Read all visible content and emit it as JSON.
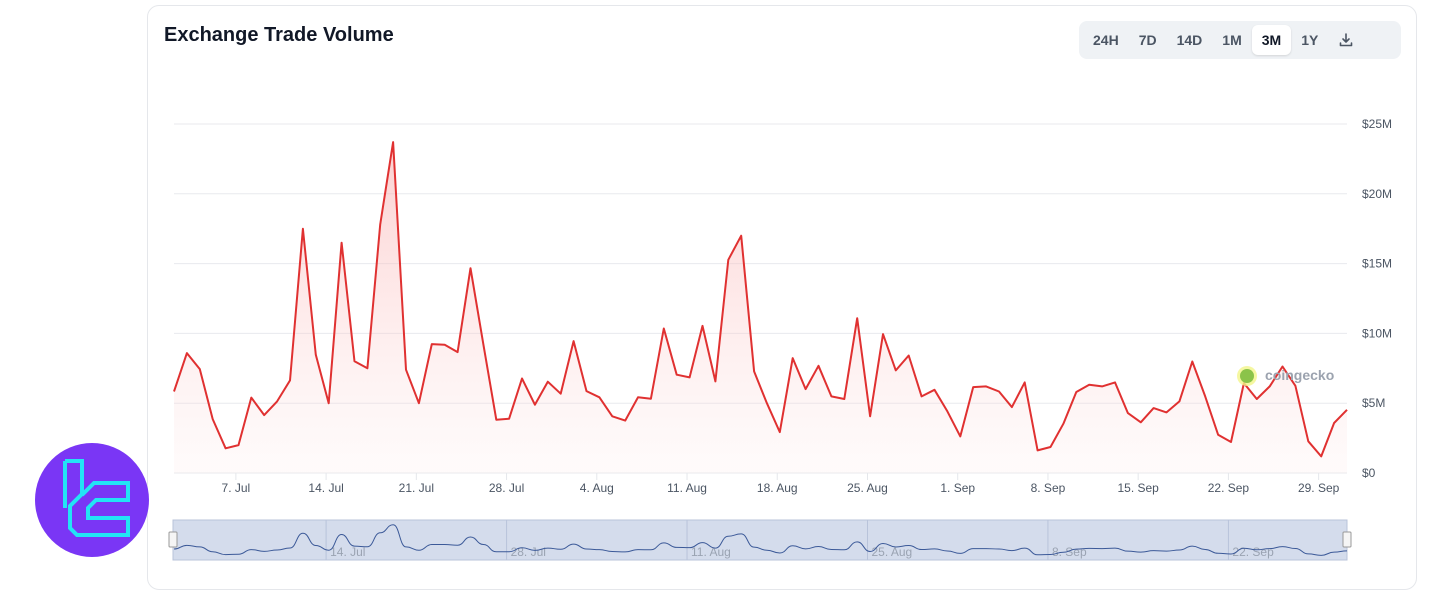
{
  "header": {
    "title": "Exchange Trade Volume"
  },
  "range_selector": {
    "options": [
      "24H",
      "7D",
      "14D",
      "1M",
      "3M",
      "1Y"
    ],
    "selected": "3M",
    "download_icon": "download-icon"
  },
  "watermark": "coingecko",
  "colors": {
    "line": "#e03131",
    "area": "#fde2e2",
    "navigator_fill": "#d4dcec",
    "navigator_line": "#3b5998",
    "logo_bg": "#7a36f5",
    "logo_glyph": "#22e4f5"
  },
  "chart_data": {
    "type": "area",
    "title": "Exchange Trade Volume",
    "xlabel": "",
    "ylabel": "",
    "ylim": [
      0,
      25
    ],
    "y_unit": "$M",
    "y_ticks": [
      "$0",
      "$5M",
      "$10M",
      "$15M",
      "$20M",
      "$25M"
    ],
    "x_ticks": [
      "7. Jul",
      "14. Jul",
      "21. Jul",
      "28. Jul",
      "4. Aug",
      "11. Aug",
      "18. Aug",
      "25. Aug",
      "1. Sep",
      "8. Sep",
      "15. Sep",
      "22. Sep",
      "29. Sep"
    ],
    "navigator_ticks": [
      "14. Jul",
      "28. Jul",
      "11. Aug",
      "25. Aug",
      "8. Sep",
      "22. Sep"
    ],
    "grid": true,
    "legend": "none",
    "x_start": "2 Jul",
    "x_end": "1 Oct",
    "x_interval": "1 day",
    "values": [
      5.84,
      8.59,
      7.44,
      3.86,
      1.77,
      2.0,
      5.4,
      4.15,
      5.13,
      6.63,
      17.49,
      8.47,
      5.0,
      16.5,
      8.0,
      7.5,
      17.8,
      23.7,
      7.4,
      5.0,
      9.23,
      9.18,
      8.66,
      14.67,
      9.2,
      3.82,
      3.89,
      6.77,
      4.89,
      6.54,
      5.68,
      9.45,
      5.87,
      5.42,
      4.06,
      3.75,
      5.42,
      5.32,
      10.35,
      7.04,
      6.85,
      10.54,
      6.56,
      15.27,
      17.0,
      7.28,
      5.0,
      2.93,
      8.23,
      6.01,
      7.68,
      5.49,
      5.3,
      11.09,
      4.06,
      9.95,
      7.35,
      8.42,
      5.49,
      5.96,
      4.41,
      2.62,
      6.15,
      6.2,
      5.84,
      4.72,
      6.49,
      1.62,
      1.86,
      3.53,
      5.8,
      6.32,
      6.2,
      6.49,
      4.29,
      3.63,
      4.65,
      4.34,
      5.13,
      7.99,
      5.49,
      2.74,
      2.22,
      6.44,
      5.3,
      6.2,
      7.63,
      6.25,
      2.27,
      1.19,
      3.58,
      4.53
    ]
  }
}
